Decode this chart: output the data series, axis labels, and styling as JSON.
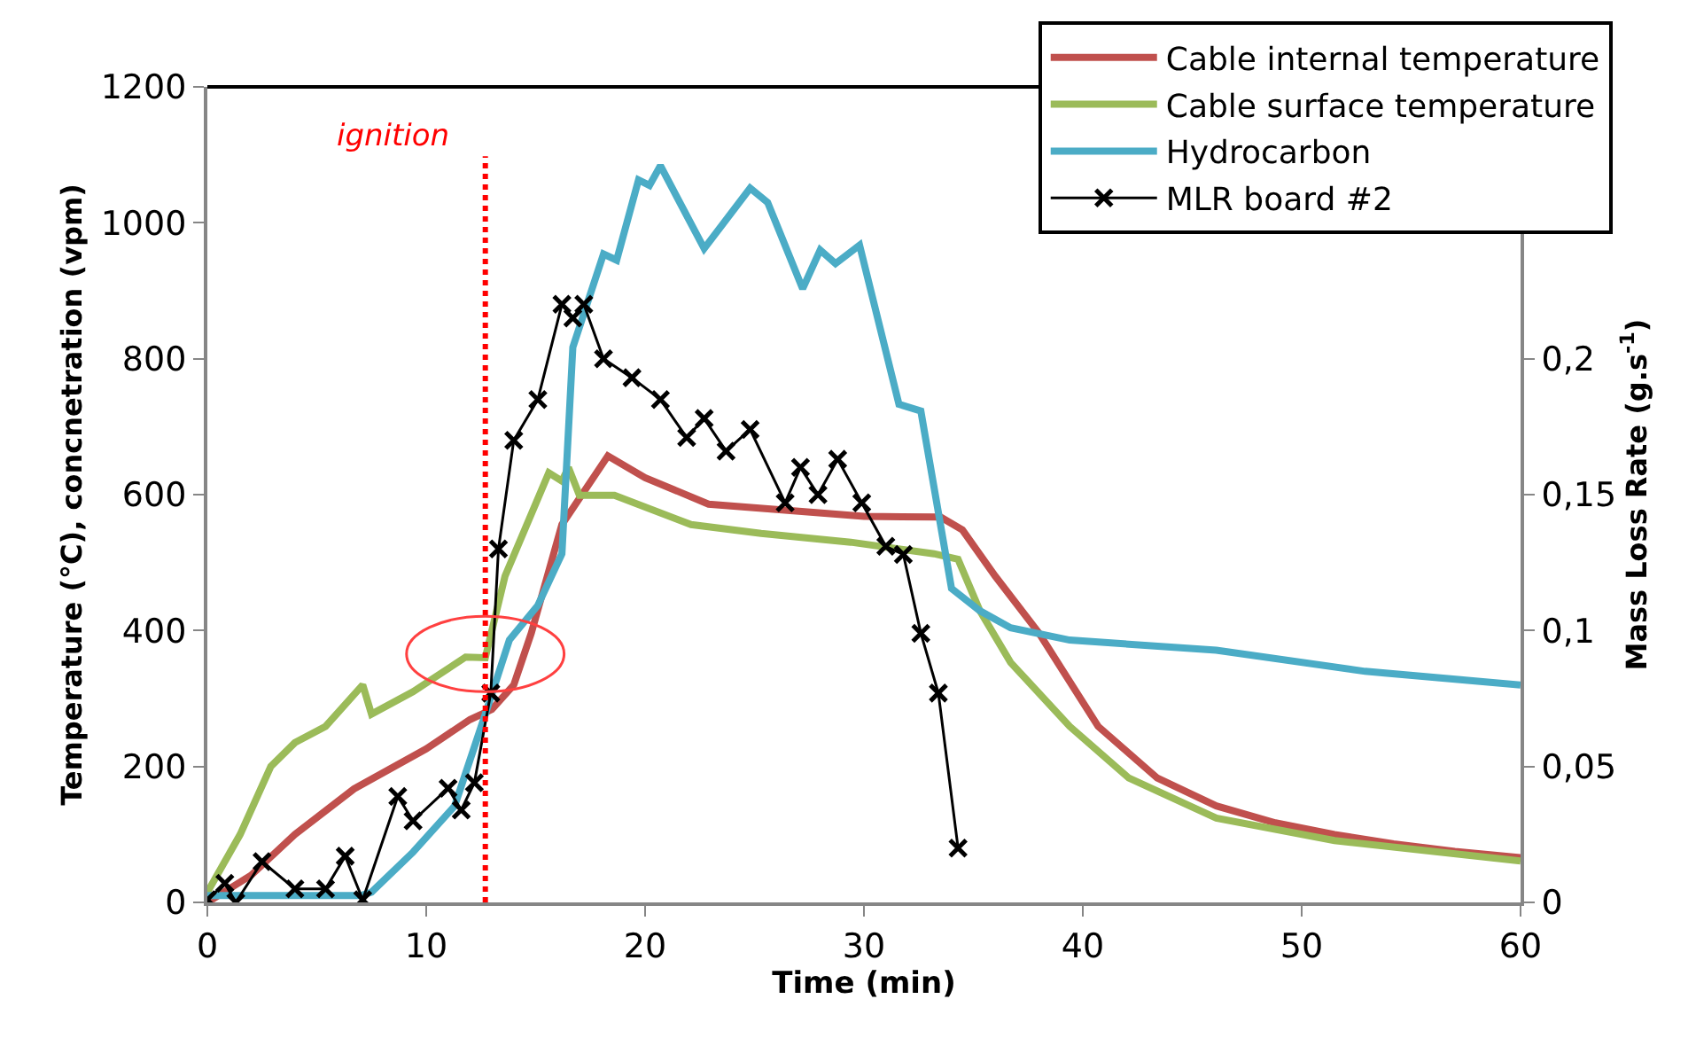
{
  "chart_data": {
    "type": "line",
    "xlabel": "Time (min)",
    "ylabel": "Temperature (°C), concnetration (vpm)",
    "y2label": "Mass Loss Rate (g.s$^{-1}$)",
    "xlim": [
      0,
      60
    ],
    "xticks": [
      0,
      10,
      20,
      30,
      40,
      50,
      60
    ],
    "ylim": [
      0,
      1200
    ],
    "yticks": [
      0,
      200,
      400,
      600,
      800,
      1000,
      1200
    ],
    "y2lim": [
      0,
      0.3
    ],
    "y2ticks": [
      {
        "value": 0,
        "label": "0"
      },
      {
        "value": 0.05,
        "label": "0,05"
      },
      {
        "value": 0.1,
        "label": "0,1"
      },
      {
        "value": 0.15,
        "label": "0,15"
      },
      {
        "value": 0.2,
        "label": "0,2"
      }
    ],
    "legend": "top right",
    "marker": "none",
    "line_style": "solid",
    "ref_lines": [
      {
        "axis": "x",
        "value": 12.7,
        "label": "ignition",
        "color": "#ff0000",
        "line_style": "dotted"
      }
    ],
    "series": [
      {
        "name": "Cable internal temperature",
        "color": "#c0504d",
        "x": [
          0,
          2,
          4,
          6.7,
          10,
          12,
          13,
          14,
          14.8,
          16.2,
          18.3,
          20,
          22.9,
          26,
          30,
          33.5,
          34.5,
          36,
          38,
          40.7,
          43.4,
          46.1,
          48.8,
          51.5,
          54.2,
          57,
          60
        ],
        "values": [
          0,
          40,
          100,
          167,
          226,
          269,
          284,
          320,
          396,
          556,
          657,
          625,
          586,
          578,
          568,
          567,
          548,
          480,
          396,
          259,
          183,
          142,
          117,
          100,
          86,
          75,
          66
        ]
      },
      {
        "name": "Cable surface temperature",
        "color": "#9bbb59",
        "x": [
          0,
          1.5,
          2.9,
          4,
          5.4,
          7.1,
          7.5,
          9.4,
          11.8,
          12.7,
          13.6,
          15.6,
          16.2,
          16.5,
          17,
          18.6,
          22.1,
          25.3,
          29.4,
          33.2,
          34.3,
          35.3,
          36.7,
          39.4,
          42.1,
          46.1,
          51.5,
          60
        ],
        "values": [
          15,
          100,
          200,
          235,
          259,
          320,
          277,
          310,
          361,
          360,
          480,
          632,
          620,
          640,
          599,
          599,
          556,
          543,
          530,
          513,
          505,
          429,
          353,
          259,
          183,
          124,
          91,
          61
        ]
      },
      {
        "name": "Hydrocarbon",
        "color": "#4bacc6",
        "x": [
          0,
          7,
          7.5,
          9.4,
          11.3,
          12.7,
          13.8,
          15.1,
          16.2,
          16.7,
          18.1,
          18.7,
          19.7,
          20.2,
          20.7,
          22.7,
          24.8,
          25.6,
          27.2,
          28,
          28.7,
          29.8,
          31.6,
          32.6,
          34,
          35.3,
          36.7,
          39.4,
          46.1,
          52.9,
          60
        ],
        "values": [
          10,
          10,
          15,
          74,
          142,
          277,
          386,
          437,
          513,
          817,
          954,
          945,
          1063,
          1055,
          1084,
          962,
          1051,
          1030,
          903,
          960,
          940,
          967,
          733,
          723,
          462,
          429,
          404,
          386,
          371,
          340,
          320
        ]
      },
      {
        "name": "MLR board #2",
        "color": "#000000",
        "axis": "y2",
        "marker": "cross",
        "x": [
          0,
          0.8,
          1.3,
          2.5,
          4,
          5.4,
          6.3,
          7.1,
          8.7,
          9.4,
          11,
          11.6,
          12.2,
          12.95,
          13.3,
          14,
          15.1,
          16.2,
          16.7,
          17.2,
          18.1,
          19.4,
          20.7,
          21.9,
          22.7,
          23.7,
          24.8,
          26.4,
          27.1,
          27.9,
          28.8,
          29.9,
          31,
          31.8,
          32.6,
          33.4,
          34.3
        ],
        "values": [
          0.001,
          0.007,
          0,
          0.015,
          0.005,
          0.005,
          0.017,
          0.001,
          0.039,
          0.03,
          0.042,
          0.034,
          0.044,
          0.077,
          0.13,
          0.17,
          0.185,
          0.22,
          0.215,
          0.22,
          0.2,
          0.193,
          0.185,
          0.171,
          0.178,
          0.166,
          0.174,
          0.147,
          0.16,
          0.15,
          0.163,
          0.147,
          0.131,
          0.128,
          0.099,
          0.077,
          0.02
        ]
      }
    ]
  }
}
